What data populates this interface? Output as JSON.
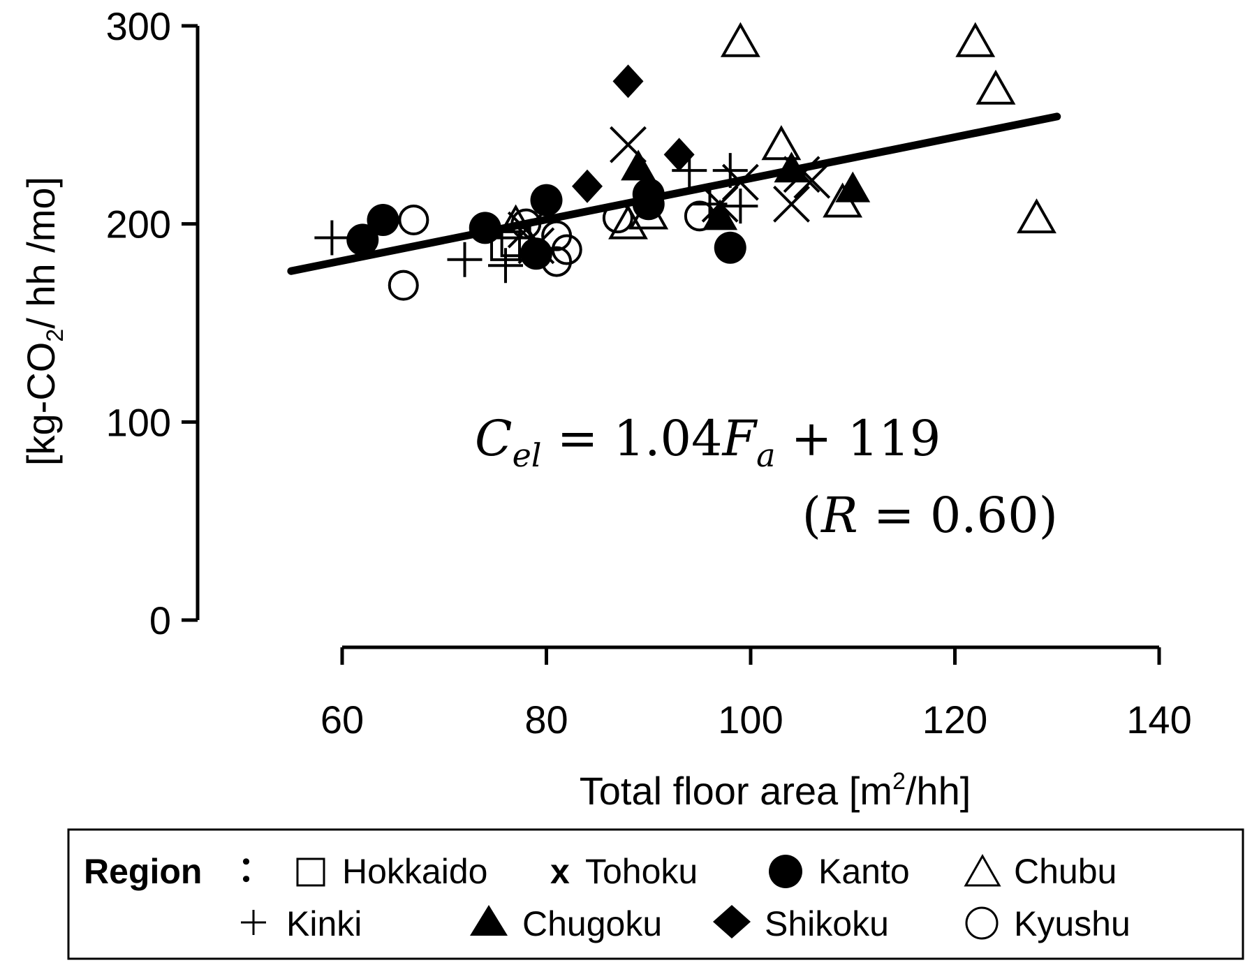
{
  "chart_data": {
    "type": "scatter",
    "title": "",
    "xlabel": "Total floor area [m",
    "xlabel_sup": "2",
    "xlabel_end": "/hh]",
    "ylabel": "[kg-CO",
    "ylabel_sub": "2",
    "ylabel_end": "/ hh /mo]",
    "xlim": [
      60,
      140
    ],
    "ylim": [
      0,
      300
    ],
    "xticks": [
      60,
      80,
      100,
      120,
      140
    ],
    "yticks": [
      0,
      100,
      200,
      300
    ],
    "grid": false,
    "legend_position": "bottom",
    "fit_line": {
      "slope": 1.04,
      "intercept": 119,
      "x_range": [
        55,
        130
      ]
    },
    "equation": {
      "C": "C",
      "el": "el",
      "mid": " = 1.04",
      "F": "F",
      "a": "a",
      "end": " + 119",
      "r_open": "(",
      "R": "R",
      "r_rest": " = 0.60)"
    },
    "legend": {
      "title": "Region",
      "colon": "：",
      "entries": [
        {
          "name": "Hokkaido",
          "marker": "square-open"
        },
        {
          "name": "Tohoku",
          "marker": "x",
          "marker_text": "x"
        },
        {
          "name": "Kanto",
          "marker": "circle-filled"
        },
        {
          "name": "Chubu",
          "marker": "triangle-open"
        },
        {
          "name": "Kinki",
          "marker": "plus"
        },
        {
          "name": "Chugoku",
          "marker": "triangle-filled"
        },
        {
          "name": "Shikoku",
          "marker": "diamond-filled"
        },
        {
          "name": "Kyushu",
          "marker": "circle-open"
        }
      ]
    },
    "series": [
      {
        "name": "Hokkaido",
        "marker": "square-open",
        "points": [
          [
            76,
            189
          ],
          [
            77,
            191
          ]
        ]
      },
      {
        "name": "Tohoku",
        "marker": "x",
        "points": [
          [
            88,
            240
          ],
          [
            104,
            210
          ],
          [
            105,
            225
          ],
          [
            106,
            222
          ],
          [
            97,
            210
          ],
          [
            78,
            197
          ],
          [
            79,
            189
          ],
          [
            99,
            221
          ]
        ]
      },
      {
        "name": "Kanto",
        "marker": "circle-filled",
        "points": [
          [
            62,
            192
          ],
          [
            64,
            202
          ],
          [
            74,
            198
          ],
          [
            79,
            185
          ],
          [
            80,
            212
          ],
          [
            90,
            210
          ],
          [
            90,
            215
          ],
          [
            98,
            188
          ]
        ]
      },
      {
        "name": "Chubu",
        "marker": "triangle-open",
        "points": [
          [
            99,
            292
          ],
          [
            122,
            292
          ],
          [
            124,
            268
          ],
          [
            128,
            203
          ],
          [
            103,
            240
          ],
          [
            109,
            211
          ],
          [
            88,
            200
          ],
          [
            90,
            205
          ],
          [
            77,
            200
          ]
        ]
      },
      {
        "name": "Kinki",
        "marker": "plus",
        "points": [
          [
            59,
            193
          ],
          [
            72,
            182
          ],
          [
            76,
            179
          ],
          [
            94,
            227
          ],
          [
            98,
            227
          ],
          [
            96,
            210
          ],
          [
            99,
            209
          ]
        ]
      },
      {
        "name": "Chugoku",
        "marker": "triangle-filled",
        "points": [
          [
            89,
            229
          ],
          [
            97,
            204
          ],
          [
            104,
            228
          ],
          [
            110,
            218
          ]
        ]
      },
      {
        "name": "Shikoku",
        "marker": "diamond-filled",
        "points": [
          [
            88,
            272
          ],
          [
            84,
            219
          ],
          [
            93,
            235
          ]
        ]
      },
      {
        "name": "Kyushu",
        "marker": "circle-open",
        "points": [
          [
            67,
            202
          ],
          [
            66,
            169
          ],
          [
            81,
            181
          ],
          [
            82,
            187
          ],
          [
            81,
            194
          ],
          [
            78,
            200
          ],
          [
            87,
            203
          ],
          [
            95,
            204
          ]
        ]
      }
    ]
  }
}
